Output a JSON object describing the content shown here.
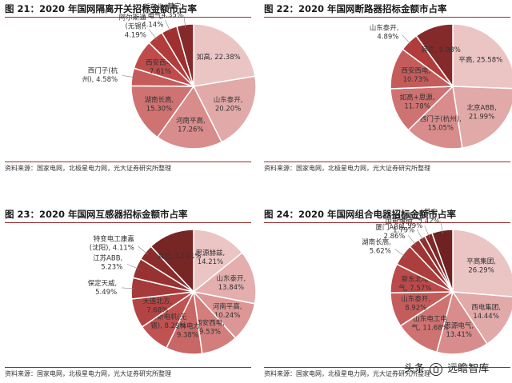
{
  "panels": [
    {
      "title": "图 21：2020 年国网隔离开关招标金额市占率",
      "source": "资料来源：国家电网，北极星电力网，光大证券研究所整理"
    },
    {
      "title": "图 22：2020 年国网断路器招标金额市占率",
      "source": "资料来源：国家电网，北极星电力网，光大证券研究所整理"
    },
    {
      "title": "图 23：2020 年国网互感器招标金额市占率",
      "source": "资料来源：国家电网，北极星电力网，光大证券研究所整理"
    },
    {
      "title": "图 24：2020 年国网组合电器招标金额市占率",
      "source": "资料来源：国家电网，北极星电力网，光大证券研究所整理"
    }
  ],
  "watermark": {
    "prefix": "头条",
    "suffix": "远瞻智库"
  },
  "chart_data": [
    {
      "type": "pie",
      "title": "图 21：2020 年国网隔离开关招标金额市占率",
      "unit": "%",
      "slices": [
        {
          "label": "如高",
          "value": 22.38,
          "text": [
            "如高, 22.38%"
          ],
          "color": "#ebc4c4"
        },
        {
          "label": "山东泰开",
          "value": 20.2,
          "text": [
            "山东泰开,",
            "20.20%"
          ],
          "color": "#e2a9a9"
        },
        {
          "label": "河南平高",
          "value": 17.26,
          "text": [
            "河南平高,",
            "17.26%"
          ],
          "color": "#d98c8c"
        },
        {
          "label": "湖南长高",
          "value": 15.3,
          "text": [
            "湖南长高,",
            "15.30%"
          ],
          "color": "#cf7272"
        },
        {
          "label": "西门子(杭州)",
          "value": 4.58,
          "text": [
            "西门子(杭",
            "州), 4.58%"
          ],
          "color": "#c55c5c"
        },
        {
          "label": "西安西电",
          "value": 7.61,
          "text": [
            "西安西电,",
            "7.61%"
          ],
          "color": "#bf4b4b"
        },
        {
          "label": "阿尔斯通(无锡)",
          "value": 4.19,
          "text": [
            "阿尔斯通",
            "(无锡),",
            "4.19%"
          ],
          "color": "#b23c3c"
        },
        {
          "label": "新东北电气",
          "value": 4.14,
          "text": [
            "新东北",
            "电气,",
            "4.14%"
          ],
          "color": "#9e3030"
        },
        {
          "label": "其它",
          "value": 4.35,
          "text": [
            "其它,",
            "4.35%"
          ],
          "color": "#852a2a"
        }
      ]
    },
    {
      "type": "pie",
      "title": "图 22：2020 年国网断路器招标金额市占率",
      "unit": "%",
      "slices": [
        {
          "label": "平高",
          "value": 25.58,
          "text": [
            "平高, 25.58%"
          ],
          "color": "#ebc4c4"
        },
        {
          "label": "北京ABB",
          "value": 21.99,
          "text": [
            "北京ABB,",
            "21.99%"
          ],
          "color": "#e2a9a9"
        },
        {
          "label": "西门子(杭州)",
          "value": 15.05,
          "text": [
            "西门子(杭州),",
            "15.05%"
          ],
          "color": "#d98c8c"
        },
        {
          "label": "如高+思源",
          "value": 11.78,
          "text": [
            "如高+思源,",
            "11.78%"
          ],
          "color": "#cf7272"
        },
        {
          "label": "西安西电",
          "value": 10.73,
          "text": [
            "西安西电,",
            "10.73%"
          ],
          "color": "#c55c5c"
        },
        {
          "label": "山东泰开",
          "value": 4.89,
          "text": [
            "山东泰开,",
            "4.89%"
          ],
          "color": "#b23c3c"
        },
        {
          "label": "其它",
          "value": 9.98,
          "text": [
            "其它, 9.98%"
          ],
          "color": "#852a2a"
        }
      ]
    },
    {
      "type": "pie",
      "title": "图 23：2020 年国网互感器招标金额市占率",
      "unit": "%",
      "slices": [
        {
          "label": "思源赫兹",
          "value": 14.21,
          "text": [
            "思源赫兹,",
            "14.21%"
          ],
          "color": "#ebc4c4"
        },
        {
          "label": "山东泰开",
          "value": 13.84,
          "text": [
            "山东泰开,",
            "13.84%"
          ],
          "color": "#e4aeae"
        },
        {
          "label": "河南平高",
          "value": 10.24,
          "text": [
            "河南平高,",
            "10.24%"
          ],
          "color": "#dc9696"
        },
        {
          "label": "西安西电",
          "value": 9.53,
          "text": [
            "西安西电,",
            "9.53%"
          ],
          "color": "#d37d7d"
        },
        {
          "label": "桂林电力",
          "value": 9.38,
          "text": [
            "桂林电力,",
            "9.38%"
          ],
          "color": "#c96666"
        },
        {
          "label": "日新电机(无锡)",
          "value": 8.29,
          "text": [
            "日新电机(无",
            "锡), 8.29%"
          ],
          "color": "#c05252"
        },
        {
          "label": "大连北方",
          "value": 7.68,
          "text": [
            "大连北方,",
            "7.68%"
          ],
          "color": "#b44444"
        },
        {
          "label": "保定天威",
          "value": 5.49,
          "text": [
            "保定天威,",
            "5.49%"
          ],
          "color": "#a63a3a"
        },
        {
          "label": "江苏ABB",
          "value": 5.23,
          "text": [
            "江苏ABB,",
            "5.23%"
          ],
          "color": "#983232"
        },
        {
          "label": "特变电工康嘉(沈阳)",
          "value": 4.11,
          "text": [
            "特变电工康嘉",
            "(沈阳), 4.11%"
          ],
          "color": "#8a2c2c"
        },
        {
          "label": "其它",
          "value": 12.01,
          "text": [
            "其它, 12.01%"
          ],
          "color": "#772626"
        }
      ]
    },
    {
      "type": "pie",
      "title": "图 24：2020 年国网组合电器招标金额市占率",
      "unit": "%",
      "slices": [
        {
          "label": "平高集团",
          "value": 26.29,
          "text": [
            "平高集团,",
            "26.29%"
          ],
          "color": "#ebc4c4"
        },
        {
          "label": "西电集团",
          "value": 14.44,
          "text": [
            "西电集团,",
            "14.44%"
          ],
          "color": "#e2a9a9"
        },
        {
          "label": "思源电气",
          "value": 13.41,
          "text": [
            "思源电气,",
            "13.41%"
          ],
          "color": "#d98c8c"
        },
        {
          "label": "山东电工电气",
          "value": 11.68,
          "text": [
            "山东电工电",
            "气, 11.68%"
          ],
          "color": "#cf7272"
        },
        {
          "label": "山东泰开",
          "value": 8.92,
          "text": [
            "山东泰开,",
            "8.92%"
          ],
          "color": "#c55c5c"
        },
        {
          "label": "新东北电气",
          "value": 7.57,
          "text": [
            "新东北电",
            "气, 7.57%"
          ],
          "color": "#bb4a4a"
        },
        {
          "label": "湖南长高",
          "value": 5.62,
          "text": [
            "湖南长高,",
            "5.62%"
          ],
          "color": "#ad3e3e"
        },
        {
          "label": "厦门ABB",
          "value": 2.86,
          "text": [
            "厦门ABB,",
            "2.86%"
          ],
          "color": "#9d3434"
        },
        {
          "label": "国电博纳",
          "value": 1.79,
          "text": [
            "国电博纳,",
            "1.79%"
          ],
          "color": "#8e2e2e"
        },
        {
          "label": "特变电工",
          "value": 1.99,
          "text": [
            "特变电工,",
            "1.99%"
          ],
          "color": "#7e2828"
        },
        {
          "label": "其它",
          "value": 5.42,
          "text": [
            "其它,",
            "5.42%"
          ],
          "color": "#6e2222"
        }
      ]
    }
  ]
}
